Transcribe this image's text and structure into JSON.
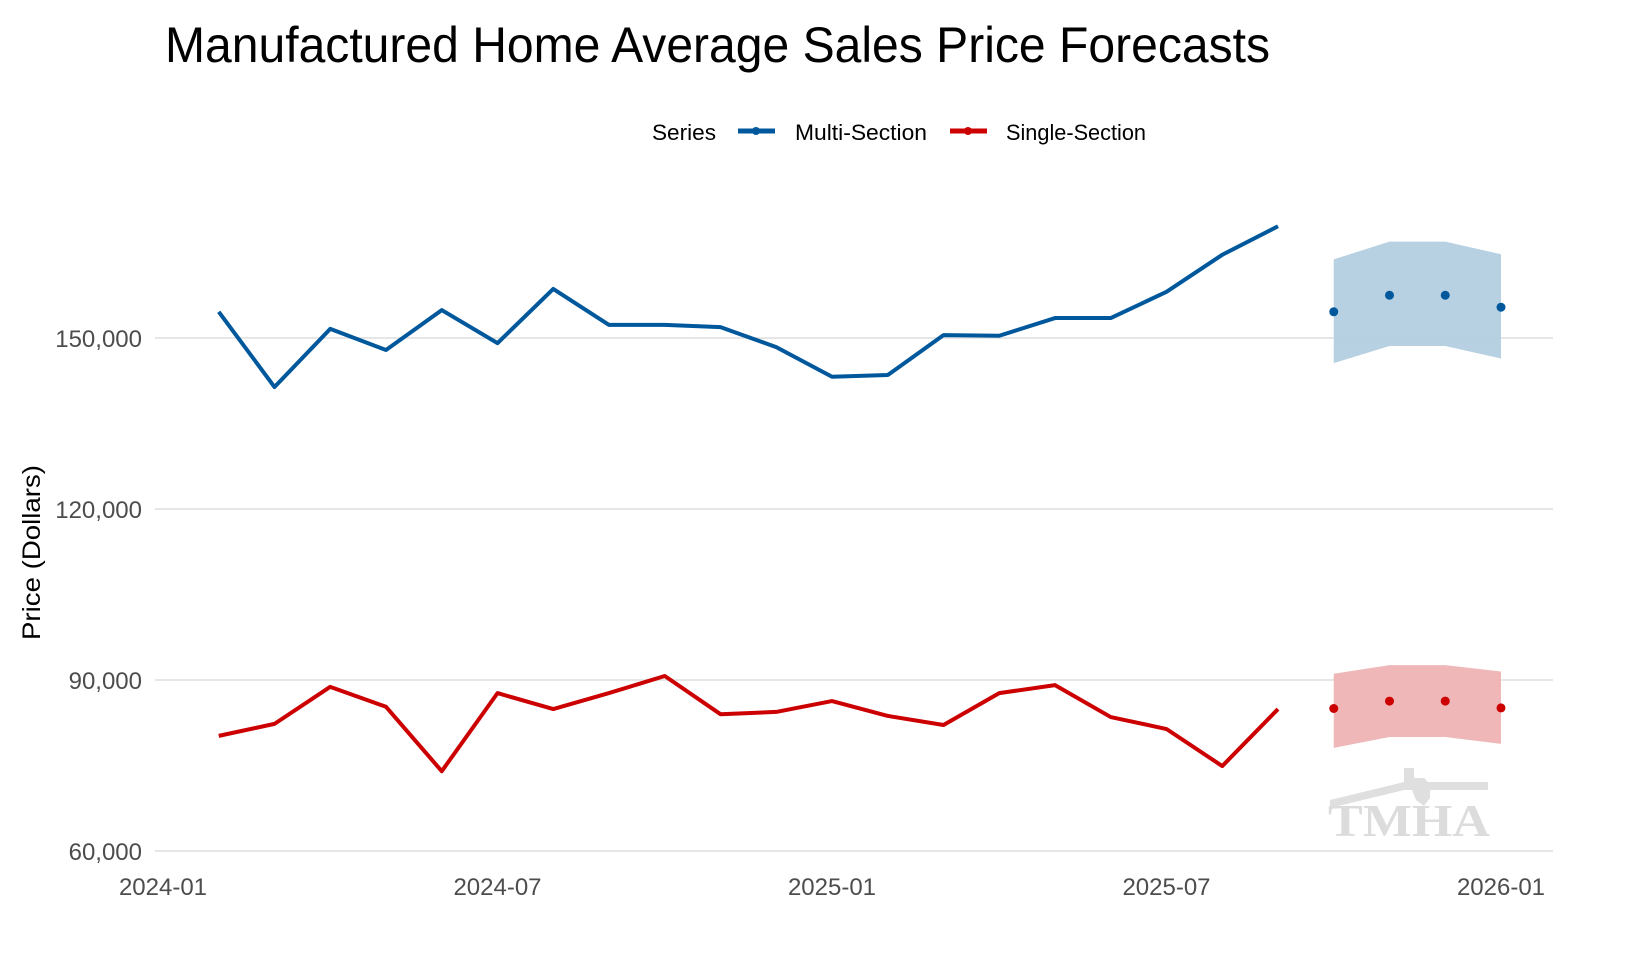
{
  "chart_data": {
    "type": "line",
    "title": "Manufactured Home Average Sales Price Forecasts",
    "xlabel": "",
    "ylabel": "Price (Dollars)",
    "ylim": [
      60000,
      170000
    ],
    "yticks": [
      60000,
      90000,
      120000,
      150000
    ],
    "ytick_labels": [
      "60,000",
      "90,000",
      "120,000",
      "150,000"
    ],
    "xticks": [
      "2024-01",
      "2024-07",
      "2025-01",
      "2025-07",
      "2026-01"
    ],
    "xlim": [
      "2024-01",
      "2026-01"
    ],
    "grid": "horizontal",
    "legend": {
      "title": "Series",
      "placement": "top-center",
      "entries": [
        "Multi-Section",
        "Single-Section"
      ]
    },
    "x": [
      "2024-02",
      "2024-03",
      "2024-04",
      "2024-05",
      "2024-06",
      "2024-07",
      "2024-08",
      "2024-09",
      "2024-10",
      "2024-11",
      "2024-12",
      "2025-01",
      "2025-02",
      "2025-03",
      "2025-04",
      "2025-05",
      "2025-06",
      "2025-07",
      "2025-08",
      "2025-09"
    ],
    "series": [
      {
        "name": "Multi-Section",
        "color": "#00589c",
        "band_color": "#b3cde0",
        "values": [
          154600,
          141400,
          151600,
          147900,
          154900,
          149100,
          158600,
          152300,
          152300,
          151900,
          148400,
          143200,
          143500,
          150500,
          150400,
          153500,
          153500,
          158100,
          164600,
          169600
        ],
        "forecast": {
          "x": [
            "2025-10",
            "2025-11",
            "2025-12",
            "2026-01"
          ],
          "values": [
            154600,
            157500,
            157500,
            155400
          ],
          "lower": [
            145600,
            148600,
            148600,
            146400
          ],
          "upper": [
            163800,
            166900,
            166900,
            164700
          ]
        }
      },
      {
        "name": "Single-Section",
        "color": "#cc0000",
        "band_color": "#eeb3b3",
        "values": [
          80200,
          82300,
          88800,
          85300,
          74000,
          87700,
          84900,
          87700,
          90700,
          84000,
          84400,
          86300,
          83700,
          82100,
          87700,
          89100,
          83500,
          81400,
          74900,
          84900
        ],
        "forecast": {
          "x": [
            "2025-10",
            "2025-11",
            "2025-12",
            "2026-01"
          ],
          "values": [
            85000,
            86300,
            86300,
            85100
          ],
          "lower": [
            78100,
            80000,
            80000,
            78800
          ],
          "upper": [
            91100,
            92600,
            92600,
            91500
          ]
        }
      }
    ],
    "watermark": "TMHA"
  }
}
